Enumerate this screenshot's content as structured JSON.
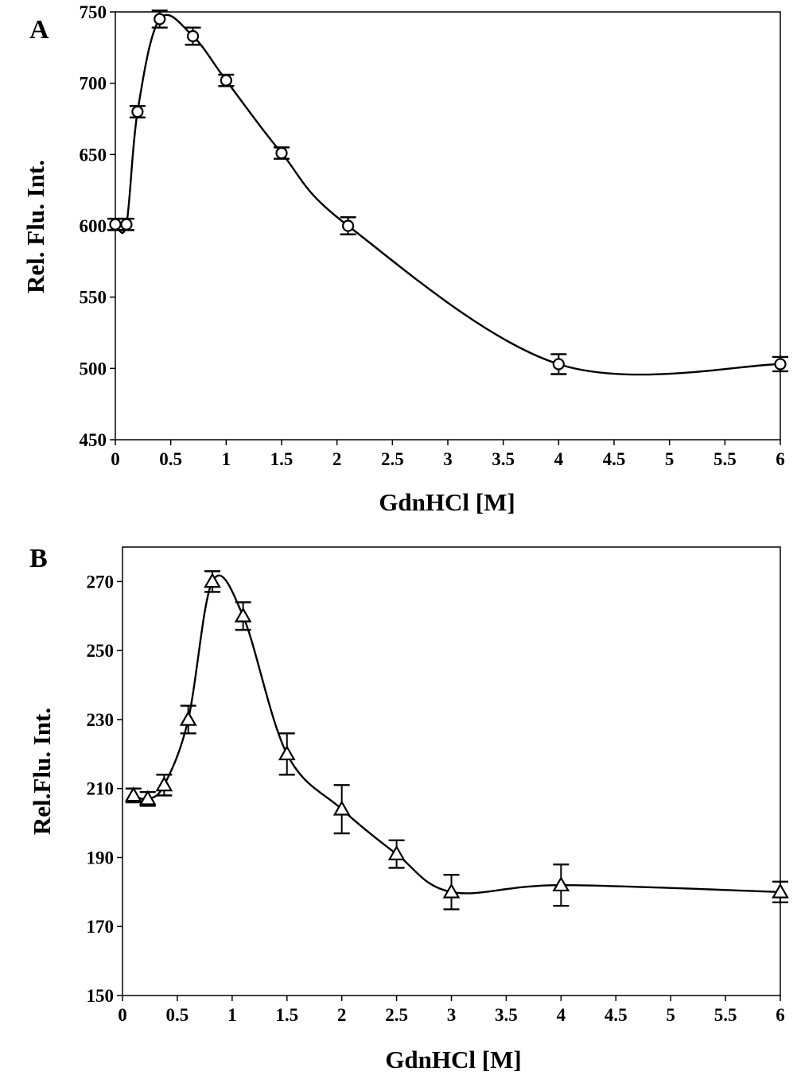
{
  "chart_data": [
    {
      "type": "line",
      "panel_label": "A",
      "xlabel": "GdnHCl [M]",
      "ylabel": "Rel. Flu. Int.",
      "xlim": [
        0,
        6
      ],
      "ylim": [
        450,
        750
      ],
      "xticks": [
        "0",
        "0.5",
        "1",
        "1.5",
        "2",
        "2.5",
        "3",
        "3.5",
        "4",
        "4.5",
        "5",
        "5.5",
        "6"
      ],
      "yticks": [
        "450",
        "500",
        "550",
        "600",
        "650",
        "700",
        "750"
      ],
      "marker": "circle",
      "grid": false,
      "series": [
        {
          "x": [
            0,
            0.1,
            0.2,
            0.4,
            0.7,
            1.0,
            1.5,
            2.1,
            4.0,
            6.0
          ],
          "y": [
            601,
            601,
            680,
            745,
            733,
            702,
            651,
            600,
            503,
            503
          ],
          "error": [
            4,
            4,
            4,
            6,
            6,
            4,
            4,
            6,
            7,
            5
          ]
        }
      ]
    },
    {
      "type": "line",
      "panel_label": "B",
      "xlabel": "GdnHCl [M]",
      "ylabel": "Rel.Flu. Int.",
      "xlim": [
        0,
        6
      ],
      "ylim": [
        150,
        280
      ],
      "xticks": [
        "0",
        "0.5",
        "1",
        "1.5",
        "2",
        "2.5",
        "3",
        "3.5",
        "4",
        "4.5",
        "5",
        "5.5",
        "6"
      ],
      "yticks": [
        "150",
        "170",
        "190",
        "210",
        "230",
        "250",
        "270"
      ],
      "marker": "triangle",
      "grid": false,
      "series": [
        {
          "x": [
            0.1,
            0.23,
            0.38,
            0.6,
            0.82,
            1.1,
            1.5,
            2.0,
            2.5,
            3.0,
            4.0,
            6.0
          ],
          "y": [
            208,
            207,
            211,
            230,
            270,
            260,
            220,
            204,
            191,
            180,
            182,
            180
          ],
          "error": [
            2,
            2,
            3,
            4,
            3,
            4,
            6,
            7,
            4,
            5,
            6,
            3
          ]
        }
      ]
    }
  ]
}
